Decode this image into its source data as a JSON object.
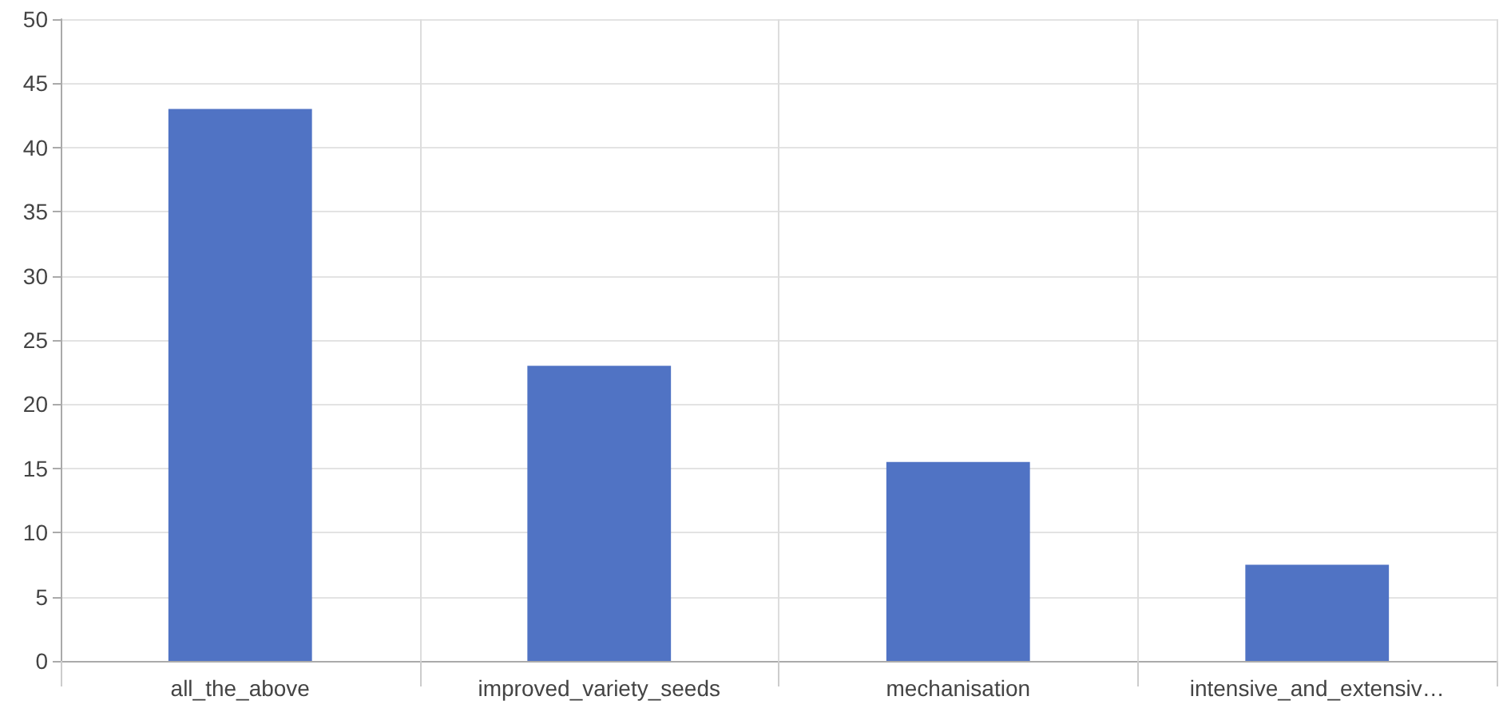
{
  "chart_data": {
    "type": "bar",
    "categories": [
      "all_the_above",
      "improved_variety_seeds",
      "mechanisation",
      "intensive_and_extensiv…"
    ],
    "values": [
      43,
      23,
      15.5,
      7.5
    ],
    "color": "#5073c4",
    "ylim": [
      0,
      50
    ],
    "yticks": [
      0,
      5,
      10,
      15,
      20,
      25,
      30,
      35,
      40,
      45,
      50
    ],
    "grid": true
  }
}
